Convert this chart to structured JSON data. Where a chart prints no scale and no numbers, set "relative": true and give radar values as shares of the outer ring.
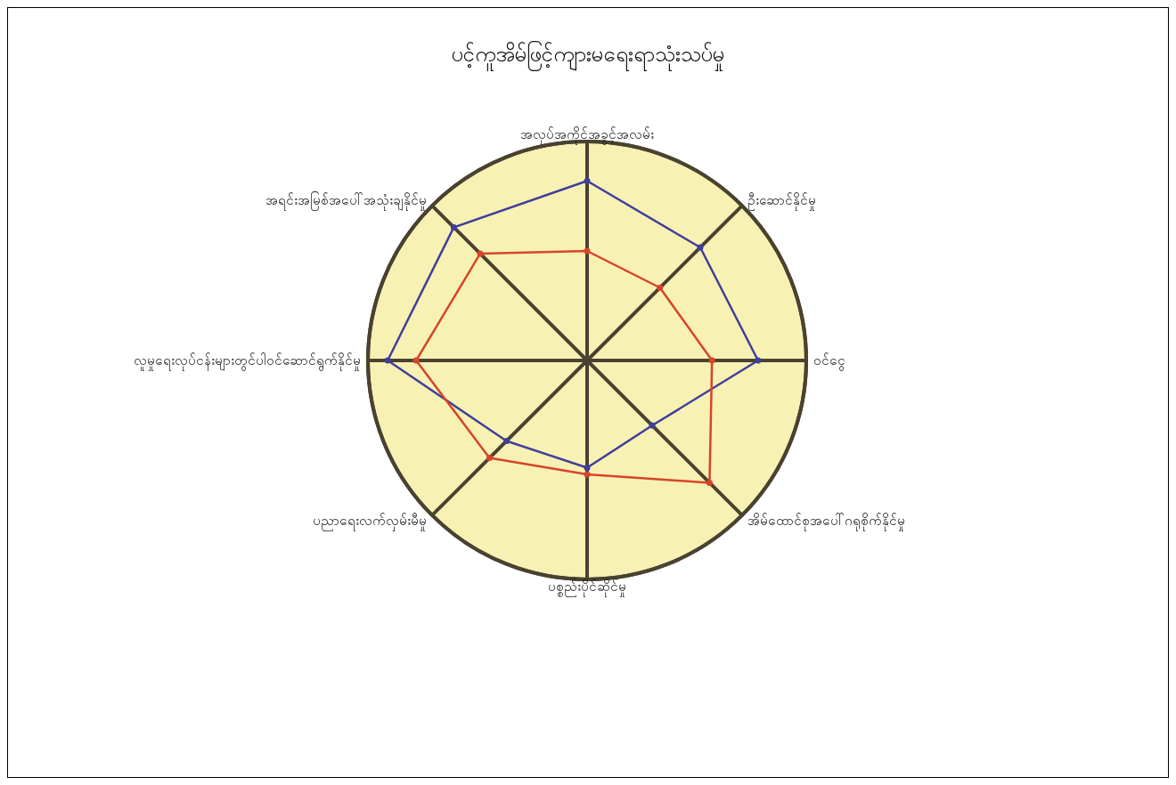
{
  "chart_data": {
    "type": "radar",
    "title": "ပင့်ကူအိမ်ဖြင့်ကျားမရေးရာသုံးသပ်မှု",
    "relative": true,
    "marker": "circle",
    "legend": false,
    "categories": [
      "အလုပ်အကိုင်အခွင့်အလမ်း",
      "ဦးဆောင်နိုင်မှု",
      "ဝင်ငွေ",
      "အိမ်ထောင်စုအပေါ်ဂရုစိုက်နိုင်မှု",
      "ပစ္စည်းပိုင်ဆိုင်မှု",
      "ပညာရေးလက်လှမ်းမီမှု",
      "လူမှုရေးလုပ်ငန်းများတွင်ပါဝင်ဆောင်ရွက်နိုင်မှု",
      "အရင်းအမြစ်အပေါ်အသုံးချနိုင်မှု"
    ],
    "series": [
      {
        "color": "#3f3f9a",
        "values": [
          0.82,
          0.73,
          0.78,
          0.42,
          0.49,
          0.52,
          0.91,
          0.86
        ]
      },
      {
        "color": "#d7442a",
        "values": [
          0.5,
          0.47,
          0.57,
          0.79,
          0.52,
          0.63,
          0.78,
          0.69
        ]
      }
    ]
  }
}
